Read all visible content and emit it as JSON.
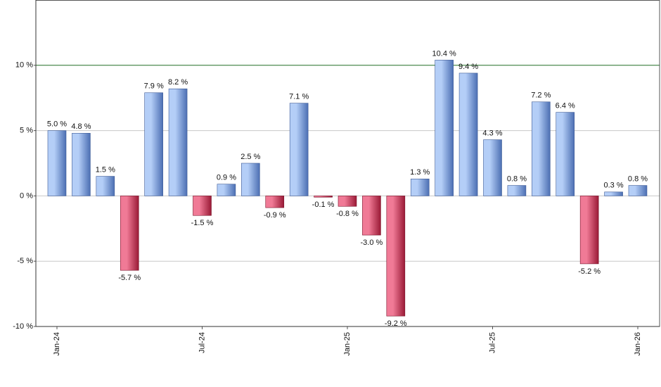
{
  "chart_data": {
    "type": "bar",
    "categories": [
      "Jan-24",
      null,
      null,
      null,
      null,
      null,
      "Jul-24",
      null,
      null,
      null,
      null,
      null,
      "Jan-25",
      null,
      null,
      null,
      null,
      null,
      "Jul-25",
      null,
      null,
      null,
      null,
      null,
      "Jan-26"
    ],
    "values": [
      5.0,
      4.8,
      1.5,
      -5.7,
      7.9,
      8.2,
      -1.5,
      0.9,
      2.5,
      -0.9,
      7.1,
      -0.1,
      -0.8,
      -3.0,
      -9.2,
      1.3,
      10.4,
      9.4,
      4.3,
      0.8,
      7.2,
      6.4,
      -5.2,
      0.3,
      0.8
    ],
    "value_labels": [
      "5.0 %",
      "4.8 %",
      "1.5 %",
      "-5.7 %",
      "7.9 %",
      "8.2 %",
      "-1.5 %",
      "0.9 %",
      "2.5 %",
      "-0.9 %",
      "7.1 %",
      "-0.1 %",
      "-0.8 %",
      "-3.0 %",
      "-9.2 %",
      "1.3 %",
      "10.4 %",
      "9.4 %",
      "4.3 %",
      "0.8 %",
      "7.2 %",
      "6.4 %",
      "-5.2 %",
      "0.3 %",
      "0.8 %"
    ],
    "positive_colors": [
      "#b4cef7",
      "#4c6fb3"
    ],
    "negative_colors": [
      "#f07a96",
      "#9a1a36"
    ],
    "ylim": [
      -10,
      15
    ],
    "yticks": [
      {
        "value": -10,
        "label": "-10 %"
      },
      {
        "value": -5,
        "label": "-5 %"
      },
      {
        "value": 0,
        "label": "0 %"
      },
      {
        "value": 5,
        "label": "5 %"
      },
      {
        "value": 10,
        "label": "10 %"
      }
    ],
    "grid": true,
    "reference_line": {
      "value": 10,
      "color": "#2e7d32"
    }
  }
}
